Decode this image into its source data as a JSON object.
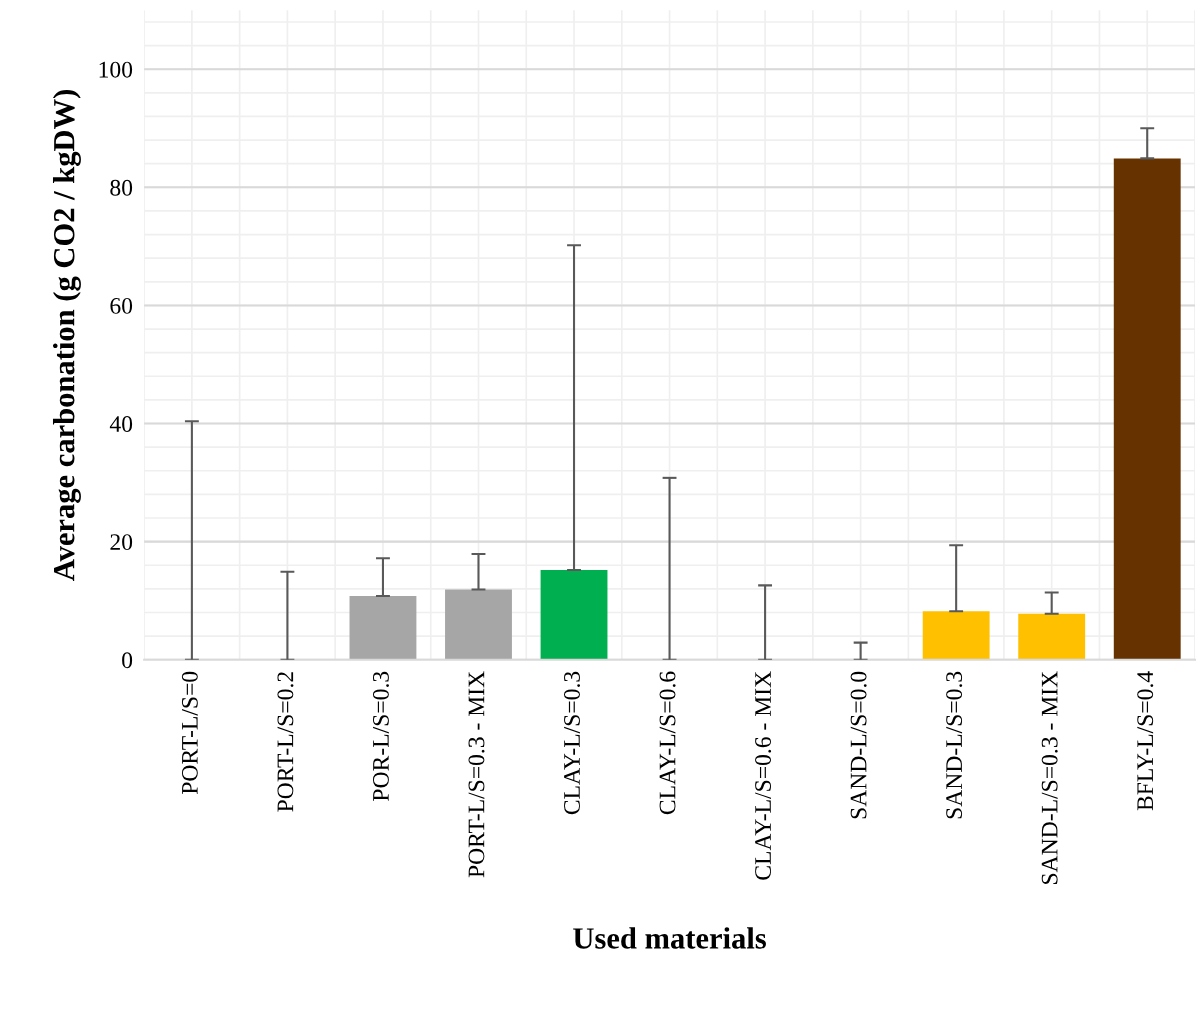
{
  "chart_data": {
    "type": "bar",
    "xlabel": "Used materials",
    "ylabel": "Average carbonation (g CO2 / kgDW)",
    "categories": [
      "PORT-L/S=0",
      "PORT-L/S=0.2",
      "POR-L/S=0.3",
      "PORT-L/S=0.3 - MIX",
      "CLAY-L/S=0.3",
      "CLAY-L/S=0.6",
      "CLAY-L/S=0.6 - MIX",
      "SAND-L/S=0.0",
      "SAND-L/S=0.3",
      "SAND-L/S=0.3 - MIX",
      "BFLY-L/S=0.4"
    ],
    "values": [
      0,
      0,
      10.8,
      11.9,
      15.2,
      0,
      0,
      0,
      8.2,
      7.8,
      84.9
    ],
    "errors": [
      [
        0,
        40.4
      ],
      [
        0,
        14.9
      ],
      [
        10.8,
        17.2
      ],
      [
        11.9,
        17.9
      ],
      [
        15.2,
        70.2
      ],
      [
        0,
        30.8
      ],
      [
        0,
        12.6
      ],
      [
        0,
        2.9
      ],
      [
        8.2,
        19.4
      ],
      [
        7.8,
        11.4
      ],
      [
        84.9,
        90.0
      ]
    ],
    "colors": [
      "#a6a6a6",
      "#a6a6a6",
      "#a6a6a6",
      "#a6a6a6",
      "#00b050",
      "#00b050",
      "#00b050",
      "#ffc000",
      "#ffc000",
      "#ffc000",
      "#663300"
    ],
    "ylim": [
      0,
      110
    ],
    "yticks": [
      0,
      20,
      40,
      60,
      80,
      100
    ],
    "grid": true
  }
}
